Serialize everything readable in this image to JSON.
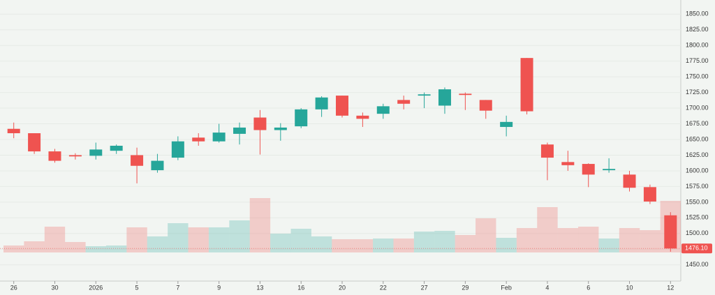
{
  "chart_data": {
    "type": "candlestick",
    "categories": [
      "26",
      null,
      "30",
      null,
      "2026",
      null,
      "5",
      null,
      "7",
      null,
      "9",
      null,
      "13",
      null,
      "16",
      null,
      "20",
      null,
      "22",
      null,
      "27",
      null,
      "29",
      null,
      "Feb",
      null,
      "4",
      null,
      "6",
      null,
      "10",
      null,
      "12"
    ],
    "open": [
      1667,
      1660,
      1631,
      1625,
      1624,
      1632,
      1625,
      1601,
      1621,
      1653,
      1647,
      1659,
      1685,
      1665,
      1671,
      1698,
      1720,
      1688,
      1691,
      1713,
      1720,
      1704,
      1723,
      1713,
      1670,
      1780,
      1642,
      1614,
      1611,
      1601,
      1594,
      1574,
      1529
    ],
    "high": [
      1677,
      1660,
      1635,
      1628,
      1645,
      1642,
      1637,
      1627,
      1655,
      1660,
      1675,
      1677,
      1697,
      1676,
      1700,
      1719,
      1720,
      1693,
      1707,
      1720,
      1725,
      1733,
      1725,
      1713,
      1688,
      1780,
      1645,
      1632,
      1612,
      1620,
      1600,
      1578,
      1534
    ],
    "low": [
      1652,
      1627,
      1613,
      1618,
      1618,
      1627,
      1580,
      1597,
      1617,
      1640,
      1645,
      1642,
      1626,
      1648,
      1668,
      1686,
      1685,
      1670,
      1683,
      1698,
      1700,
      1691,
      1697,
      1683,
      1655,
      1690,
      1585,
      1600,
      1574,
      1597,
      1567,
      1547,
      1471
    ],
    "close": [
      1660,
      1631,
      1616,
      1623,
      1634,
      1640,
      1608,
      1616,
      1647,
      1647,
      1661,
      1669,
      1665,
      1669,
      1698,
      1717,
      1688,
      1683,
      1703,
      1707,
      1722,
      1730,
      1721,
      1696,
      1678,
      1695,
      1621,
      1609,
      1594,
      1603,
      1573,
      1551,
      1476.1
    ],
    "volume": [
      10,
      16,
      37,
      15,
      9,
      10,
      36,
      23,
      42,
      36,
      36,
      46,
      78,
      27,
      34,
      23,
      19,
      19,
      20,
      20,
      30,
      31,
      25,
      49,
      21,
      35,
      65,
      35,
      37,
      20,
      35,
      32,
      74
    ],
    "up_color": "#26a69a",
    "down_color": "#ef5350",
    "ylim": [
      1437.5,
      1862.5
    ],
    "yticks": [
      {
        "value": 1450,
        "label": "1450.00"
      },
      {
        "value": 1475,
        "label": "1475.00"
      },
      {
        "value": 1500,
        "label": "1500.00"
      },
      {
        "value": 1525,
        "label": "1525.00"
      },
      {
        "value": 1550,
        "label": "1550.00"
      },
      {
        "value": 1575,
        "label": "1575.00"
      },
      {
        "value": 1600,
        "label": "1600.00"
      },
      {
        "value": 1625,
        "label": "1625.00"
      },
      {
        "value": 1650,
        "label": "1650.00"
      },
      {
        "value": 1675,
        "label": "1675.00"
      },
      {
        "value": 1700,
        "label": "1700.00"
      },
      {
        "value": 1725,
        "label": "1725.00"
      },
      {
        "value": 1750,
        "label": "1750.00"
      },
      {
        "value": 1775,
        "label": "1775.00"
      },
      {
        "value": 1800,
        "label": "1800.00"
      },
      {
        "value": 1825,
        "label": "1825.00"
      },
      {
        "value": 1850,
        "label": "1850.00"
      }
    ],
    "last_price": {
      "value": 1476.1,
      "label": "1476.10"
    },
    "grid": true
  }
}
